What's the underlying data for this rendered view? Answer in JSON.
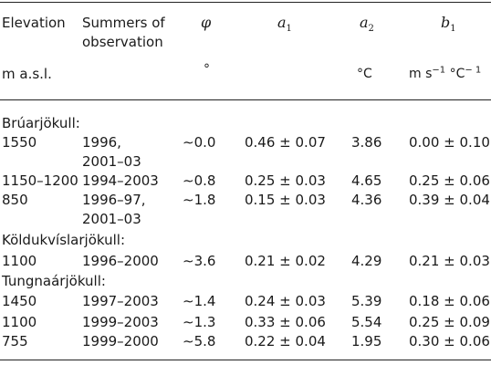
{
  "table": {
    "headers": [
      {
        "l1": "Elevation",
        "l2": "",
        "unit": "m a.s.l."
      },
      {
        "l1": "Summers of",
        "l2": "observation",
        "unit": ""
      },
      {
        "l1": "φ",
        "unit": "°"
      },
      {
        "l1": "a",
        "sub": "1",
        "unit": ""
      },
      {
        "l1": "a",
        "sub": "2",
        "unit": "°C"
      },
      {
        "l1": "b",
        "sub": "1",
        "unit_a": "m s",
        "unit_a_sup": "−1",
        "unit_b": " °C",
        "unit_b_sup": "− 1"
      }
    ],
    "groups": [
      {
        "name": "Brúarjökull:",
        "rows": [
          {
            "elev": "1550",
            "summers": [
              "1996,",
              "2001–03"
            ],
            "phi": "∼0.0",
            "a1": "0.46 ± 0.07",
            "a2": "3.86",
            "b1": "0.00 ± 0.10"
          },
          {
            "elev": "1150–1200",
            "summers": [
              "1994–2003"
            ],
            "phi": "∼0.8",
            "a1": "0.25 ± 0.03",
            "a2": "4.65",
            "b1": "0.25 ± 0.06"
          },
          {
            "elev": "850",
            "summers": [
              "1996–97,",
              "2001–03"
            ],
            "phi": "∼1.8",
            "a1": "0.15 ± 0.03",
            "a2": "4.36",
            "b1": "0.39 ± 0.04"
          }
        ]
      },
      {
        "name": "Köldukvíslarjökull:",
        "rows": [
          {
            "elev": "1100",
            "summers": [
              "1996–2000"
            ],
            "phi": "∼3.6",
            "a1": "0.21 ± 0.02",
            "a2": "4.29",
            "b1": "0.21 ± 0.03"
          }
        ]
      },
      {
        "name": "Tungnaárjökull:",
        "rows": [
          {
            "elev": "1450",
            "summers": [
              "1997–2003"
            ],
            "phi": "∼1.4",
            "a1": "0.24 ± 0.03",
            "a2": "5.39",
            "b1": "0.18 ± 0.06"
          },
          {
            "elev": "1100",
            "summers": [
              "1999–2003"
            ],
            "phi": "∼1.3",
            "a1": "0.33 ± 0.06",
            "a2": "5.54",
            "b1": "0.25 ± 0.09"
          },
          {
            "elev": "755",
            "summers": [
              "1999–2000"
            ],
            "phi": "∼5.8",
            "a1": "0.22 ± 0.04",
            "a2": "1.95",
            "b1": "0.30 ± 0.06"
          }
        ]
      }
    ]
  }
}
